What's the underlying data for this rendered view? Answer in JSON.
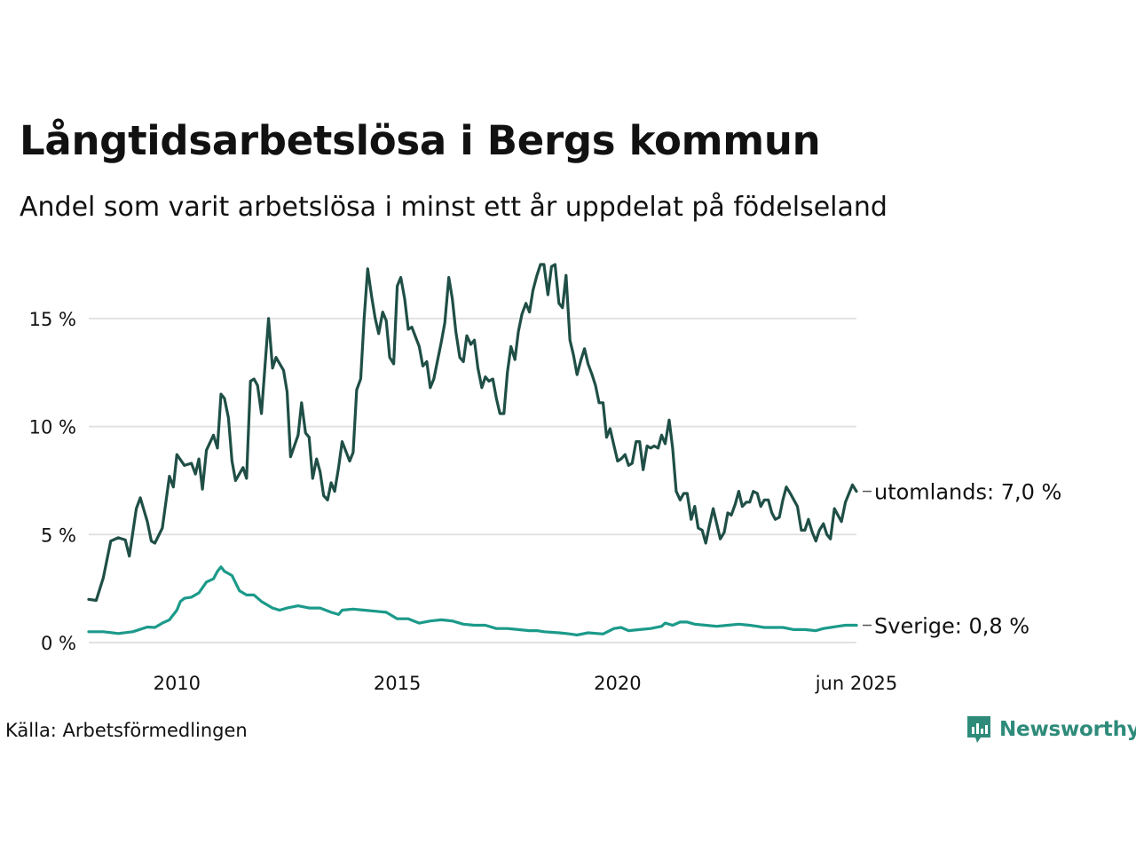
{
  "chart_data": {
    "type": "line",
    "title": "Långtidsarbetslösa i Bergs kommun",
    "subtitle": "Andel som varit arbetslösa i minst ett år uppdelat på födelseland",
    "source": "Källa: Arbetsförmedlingen",
    "brand": "Newsworthy",
    "x_range": [
      2008.0,
      2025.42
    ],
    "ylim": [
      0,
      17.5
    ],
    "y_ticks": [
      {
        "value": 0,
        "label": "0 %"
      },
      {
        "value": 5,
        "label": "5 %"
      },
      {
        "value": 10,
        "label": "10 %"
      },
      {
        "value": 15,
        "label": "15 %"
      }
    ],
    "x_ticks": [
      {
        "value": 2010,
        "label": "2010"
      },
      {
        "value": 2015,
        "label": "2015"
      },
      {
        "value": 2020,
        "label": "2020"
      },
      {
        "value": 2025.42,
        "label": "jun 2025"
      }
    ],
    "grid": true,
    "series": [
      {
        "name": "utomlands",
        "end_label": "utomlands: 7,0 %",
        "color": "#1f4f46",
        "points": [
          [
            2008.0,
            2.0
          ],
          [
            2008.17,
            1.95
          ],
          [
            2008.33,
            3.0
          ],
          [
            2008.5,
            4.7
          ],
          [
            2008.67,
            4.85
          ],
          [
            2008.83,
            4.75
          ],
          [
            2008.92,
            4.0
          ],
          [
            2009.08,
            6.2
          ],
          [
            2009.17,
            6.7
          ],
          [
            2009.33,
            5.6
          ],
          [
            2009.42,
            4.7
          ],
          [
            2009.5,
            4.6
          ],
          [
            2009.67,
            5.3
          ],
          [
            2009.83,
            7.7
          ],
          [
            2009.92,
            7.2
          ],
          [
            2010.0,
            8.7
          ],
          [
            2010.17,
            8.2
          ],
          [
            2010.33,
            8.3
          ],
          [
            2010.42,
            7.8
          ],
          [
            2010.5,
            8.5
          ],
          [
            2010.58,
            7.1
          ],
          [
            2010.67,
            8.9
          ],
          [
            2010.83,
            9.6
          ],
          [
            2010.92,
            9.0
          ],
          [
            2011.0,
            11.5
          ],
          [
            2011.08,
            11.3
          ],
          [
            2011.17,
            10.4
          ],
          [
            2011.25,
            8.4
          ],
          [
            2011.33,
            7.5
          ],
          [
            2011.5,
            8.1
          ],
          [
            2011.58,
            7.6
          ],
          [
            2011.67,
            12.1
          ],
          [
            2011.75,
            12.2
          ],
          [
            2011.83,
            11.9
          ],
          [
            2011.92,
            10.6
          ],
          [
            2012.0,
            12.8
          ],
          [
            2012.08,
            15.0
          ],
          [
            2012.17,
            12.7
          ],
          [
            2012.25,
            13.2
          ],
          [
            2012.42,
            12.6
          ],
          [
            2012.5,
            11.6
          ],
          [
            2012.58,
            8.6
          ],
          [
            2012.75,
            9.6
          ],
          [
            2012.83,
            11.1
          ],
          [
            2012.92,
            9.7
          ],
          [
            2013.0,
            9.5
          ],
          [
            2013.08,
            7.6
          ],
          [
            2013.17,
            8.5
          ],
          [
            2013.25,
            7.9
          ],
          [
            2013.33,
            6.8
          ],
          [
            2013.42,
            6.6
          ],
          [
            2013.5,
            7.4
          ],
          [
            2013.58,
            7.0
          ],
          [
            2013.67,
            8.1
          ],
          [
            2013.75,
            9.3
          ],
          [
            2013.92,
            8.4
          ],
          [
            2014.0,
            8.8
          ],
          [
            2014.08,
            11.7
          ],
          [
            2014.17,
            12.2
          ],
          [
            2014.25,
            15.0
          ],
          [
            2014.33,
            17.3
          ],
          [
            2014.42,
            16.0
          ],
          [
            2014.5,
            15.0
          ],
          [
            2014.58,
            14.3
          ],
          [
            2014.67,
            15.3
          ],
          [
            2014.75,
            14.9
          ],
          [
            2014.83,
            13.2
          ],
          [
            2014.92,
            12.9
          ],
          [
            2015.0,
            16.5
          ],
          [
            2015.08,
            16.9
          ],
          [
            2015.17,
            15.9
          ],
          [
            2015.25,
            14.5
          ],
          [
            2015.33,
            14.6
          ],
          [
            2015.5,
            13.7
          ],
          [
            2015.58,
            12.8
          ],
          [
            2015.67,
            13.0
          ],
          [
            2015.75,
            11.8
          ],
          [
            2015.83,
            12.2
          ],
          [
            2016.0,
            13.9
          ],
          [
            2016.08,
            14.8
          ],
          [
            2016.17,
            16.9
          ],
          [
            2016.25,
            15.9
          ],
          [
            2016.33,
            14.4
          ],
          [
            2016.42,
            13.2
          ],
          [
            2016.5,
            13.0
          ],
          [
            2016.58,
            14.2
          ],
          [
            2016.67,
            13.8
          ],
          [
            2016.75,
            14.0
          ],
          [
            2016.83,
            12.7
          ],
          [
            2016.92,
            11.8
          ],
          [
            2017.0,
            12.3
          ],
          [
            2017.08,
            12.1
          ],
          [
            2017.17,
            12.2
          ],
          [
            2017.25,
            11.3
          ],
          [
            2017.33,
            10.6
          ],
          [
            2017.42,
            10.6
          ],
          [
            2017.5,
            12.5
          ],
          [
            2017.58,
            13.7
          ],
          [
            2017.67,
            13.1
          ],
          [
            2017.75,
            14.4
          ],
          [
            2017.83,
            15.2
          ],
          [
            2017.92,
            15.7
          ],
          [
            2018.0,
            15.3
          ],
          [
            2018.08,
            16.3
          ],
          [
            2018.17,
            17.0
          ],
          [
            2018.25,
            17.5
          ],
          [
            2018.33,
            17.5
          ],
          [
            2018.42,
            16.1
          ],
          [
            2018.5,
            17.4
          ],
          [
            2018.58,
            17.5
          ],
          [
            2018.67,
            15.7
          ],
          [
            2018.75,
            15.5
          ],
          [
            2018.83,
            17.0
          ],
          [
            2018.92,
            14.0
          ],
          [
            2019.0,
            13.3
          ],
          [
            2019.08,
            12.4
          ],
          [
            2019.17,
            13.1
          ],
          [
            2019.25,
            13.6
          ],
          [
            2019.33,
            12.9
          ],
          [
            2019.42,
            12.4
          ],
          [
            2019.5,
            11.9
          ],
          [
            2019.58,
            11.1
          ],
          [
            2019.67,
            11.1
          ],
          [
            2019.75,
            9.5
          ],
          [
            2019.83,
            9.9
          ],
          [
            2019.92,
            9.1
          ],
          [
            2020.0,
            8.4
          ],
          [
            2020.08,
            8.5
          ],
          [
            2020.17,
            8.7
          ],
          [
            2020.25,
            8.2
          ],
          [
            2020.33,
            8.3
          ],
          [
            2020.42,
            9.3
          ],
          [
            2020.5,
            9.3
          ],
          [
            2020.58,
            8.0
          ],
          [
            2020.67,
            9.1
          ],
          [
            2020.75,
            9.0
          ],
          [
            2020.83,
            9.1
          ],
          [
            2020.92,
            9.0
          ],
          [
            2021.0,
            9.6
          ],
          [
            2021.08,
            9.2
          ],
          [
            2021.17,
            10.3
          ],
          [
            2021.25,
            9.0
          ],
          [
            2021.33,
            7.0
          ],
          [
            2021.42,
            6.6
          ],
          [
            2021.5,
            6.9
          ],
          [
            2021.58,
            6.9
          ],
          [
            2021.67,
            5.7
          ],
          [
            2021.75,
            6.3
          ],
          [
            2021.83,
            5.3
          ],
          [
            2021.92,
            5.2
          ],
          [
            2022.0,
            4.6
          ],
          [
            2022.08,
            5.4
          ],
          [
            2022.17,
            6.2
          ],
          [
            2022.25,
            5.5
          ],
          [
            2022.33,
            4.8
          ],
          [
            2022.42,
            5.1
          ],
          [
            2022.5,
            6.0
          ],
          [
            2022.58,
            5.9
          ],
          [
            2022.67,
            6.4
          ],
          [
            2022.75,
            7.0
          ],
          [
            2022.83,
            6.3
          ],
          [
            2022.92,
            6.5
          ],
          [
            2023.0,
            6.5
          ],
          [
            2023.08,
            7.0
          ],
          [
            2023.17,
            6.9
          ],
          [
            2023.25,
            6.3
          ],
          [
            2023.33,
            6.6
          ],
          [
            2023.42,
            6.6
          ],
          [
            2023.5,
            6.0
          ],
          [
            2023.58,
            5.7
          ],
          [
            2023.67,
            5.8
          ],
          [
            2023.75,
            6.6
          ],
          [
            2023.83,
            7.2
          ],
          [
            2023.92,
            6.9
          ],
          [
            2024.0,
            6.6
          ],
          [
            2024.08,
            6.3
          ],
          [
            2024.17,
            5.2
          ],
          [
            2024.25,
            5.2
          ],
          [
            2024.33,
            5.7
          ],
          [
            2024.42,
            5.1
          ],
          [
            2024.5,
            4.7
          ],
          [
            2024.58,
            5.2
          ],
          [
            2024.67,
            5.5
          ],
          [
            2024.75,
            5.0
          ],
          [
            2024.83,
            4.8
          ],
          [
            2024.92,
            6.2
          ],
          [
            2025.0,
            5.9
          ],
          [
            2025.08,
            5.6
          ],
          [
            2025.17,
            6.5
          ],
          [
            2025.25,
            6.9
          ],
          [
            2025.33,
            7.3
          ],
          [
            2025.42,
            7.0
          ]
        ]
      },
      {
        "name": "Sverige",
        "end_label": "Sverige: 0,8 %",
        "color": "#1c9a8a",
        "points": [
          [
            2008.0,
            0.5
          ],
          [
            2008.33,
            0.5
          ],
          [
            2008.67,
            0.42
          ],
          [
            2009.0,
            0.5
          ],
          [
            2009.33,
            0.72
          ],
          [
            2009.5,
            0.7
          ],
          [
            2009.67,
            0.9
          ],
          [
            2009.83,
            1.05
          ],
          [
            2010.0,
            1.5
          ],
          [
            2010.08,
            1.9
          ],
          [
            2010.17,
            2.05
          ],
          [
            2010.33,
            2.1
          ],
          [
            2010.5,
            2.3
          ],
          [
            2010.67,
            2.8
          ],
          [
            2010.83,
            2.95
          ],
          [
            2010.92,
            3.3
          ],
          [
            2011.0,
            3.5
          ],
          [
            2011.08,
            3.3
          ],
          [
            2011.25,
            3.1
          ],
          [
            2011.42,
            2.4
          ],
          [
            2011.58,
            2.2
          ],
          [
            2011.75,
            2.2
          ],
          [
            2011.92,
            1.9
          ],
          [
            2012.17,
            1.6
          ],
          [
            2012.33,
            1.5
          ],
          [
            2012.5,
            1.6
          ],
          [
            2012.75,
            1.7
          ],
          [
            2013.0,
            1.6
          ],
          [
            2013.25,
            1.6
          ],
          [
            2013.5,
            1.4
          ],
          [
            2013.67,
            1.3
          ],
          [
            2013.75,
            1.5
          ],
          [
            2014.0,
            1.55
          ],
          [
            2014.25,
            1.5
          ],
          [
            2014.5,
            1.45
          ],
          [
            2014.75,
            1.4
          ],
          [
            2015.0,
            1.1
          ],
          [
            2015.25,
            1.1
          ],
          [
            2015.5,
            0.9
          ],
          [
            2015.75,
            1.0
          ],
          [
            2016.0,
            1.05
          ],
          [
            2016.25,
            1.0
          ],
          [
            2016.5,
            0.85
          ],
          [
            2016.75,
            0.8
          ],
          [
            2017.0,
            0.8
          ],
          [
            2017.25,
            0.65
          ],
          [
            2017.5,
            0.65
          ],
          [
            2017.75,
            0.6
          ],
          [
            2018.0,
            0.55
          ],
          [
            2018.17,
            0.55
          ],
          [
            2018.33,
            0.5
          ],
          [
            2018.67,
            0.45
          ],
          [
            2018.92,
            0.4
          ],
          [
            2019.08,
            0.35
          ],
          [
            2019.33,
            0.45
          ],
          [
            2019.67,
            0.4
          ],
          [
            2019.92,
            0.65
          ],
          [
            2020.08,
            0.7
          ],
          [
            2020.25,
            0.55
          ],
          [
            2020.5,
            0.6
          ],
          [
            2020.75,
            0.65
          ],
          [
            2021.0,
            0.75
          ],
          [
            2021.08,
            0.9
          ],
          [
            2021.25,
            0.8
          ],
          [
            2021.42,
            0.95
          ],
          [
            2021.58,
            0.95
          ],
          [
            2021.75,
            0.85
          ],
          [
            2022.0,
            0.8
          ],
          [
            2022.25,
            0.75
          ],
          [
            2022.5,
            0.8
          ],
          [
            2022.75,
            0.85
          ],
          [
            2023.0,
            0.8
          ],
          [
            2023.17,
            0.75
          ],
          [
            2023.33,
            0.7
          ],
          [
            2023.5,
            0.7
          ],
          [
            2023.75,
            0.7
          ],
          [
            2024.0,
            0.6
          ],
          [
            2024.25,
            0.6
          ],
          [
            2024.5,
            0.55
          ],
          [
            2024.67,
            0.65
          ],
          [
            2024.83,
            0.7
          ],
          [
            2025.0,
            0.75
          ],
          [
            2025.17,
            0.8
          ],
          [
            2025.42,
            0.8
          ]
        ]
      }
    ]
  }
}
